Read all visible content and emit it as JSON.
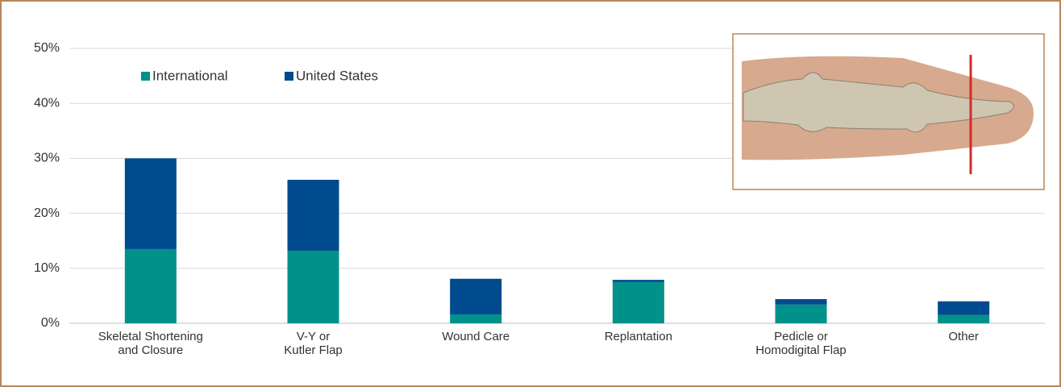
{
  "chart_data": {
    "type": "stacked-bar",
    "categories": [
      "Skeletal Shortening\nand Closure",
      "V-Y or\nKutler Flap",
      "Wound Care",
      "Replantation",
      "Pedicle or\nHomodigital Flap",
      "Other"
    ],
    "series": [
      {
        "name": "International",
        "color": "#00918a",
        "values": [
          13.5,
          13.2,
          1.6,
          7.5,
          3.4,
          1.5
        ]
      },
      {
        "name": "United States",
        "color": "#004b8d",
        "values": [
          16.5,
          12.9,
          6.5,
          0.4,
          1.0,
          2.5
        ]
      }
    ],
    "ylim": [
      0,
      50
    ],
    "yticks": [
      {
        "value": 0,
        "label": "0%"
      },
      {
        "value": 10,
        "label": "10%"
      },
      {
        "value": 20,
        "label": "20%"
      },
      {
        "value": 30,
        "label": "30%"
      },
      {
        "value": 40,
        "label": "40%"
      },
      {
        "value": 50,
        "label": "50%"
      }
    ],
    "grid": true
  }
}
